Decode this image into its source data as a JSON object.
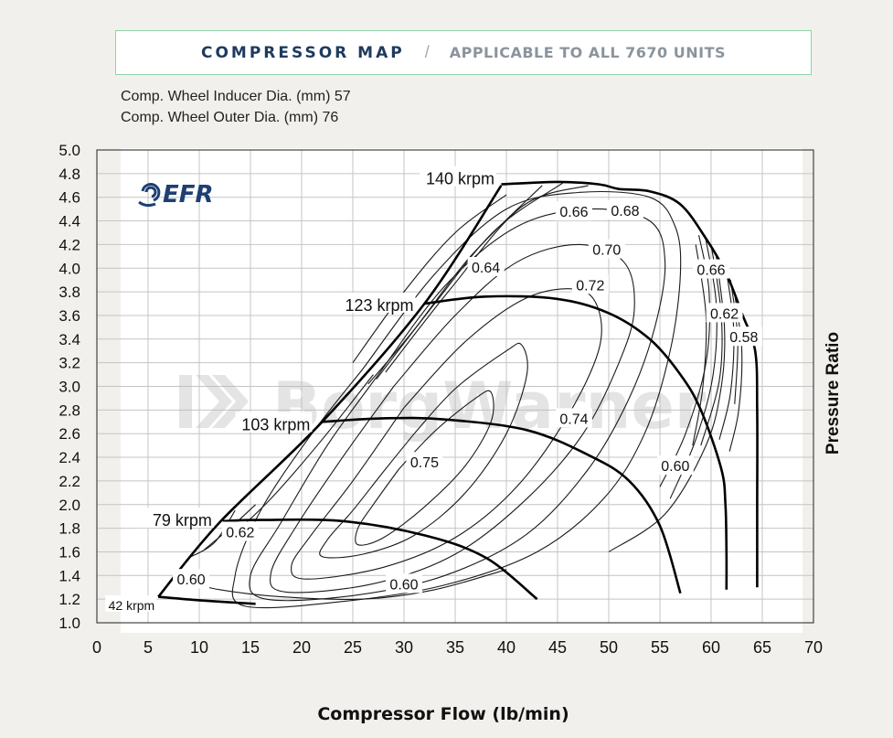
{
  "header": {
    "title": "COMPRESSOR MAP",
    "separator": "/",
    "subtitle": "APPLICABLE TO ALL 7670  UNITS"
  },
  "specs": {
    "inducer": "Comp. Wheel Inducer Dia. (mm) 57",
    "outer": "Comp. Wheel Outer Dia. (mm) 76"
  },
  "logo": {
    "text": "EFR",
    "color": "#1f3f73",
    "watermark": "BorgWarner"
  },
  "colors": {
    "accent": "#1e3a5f",
    "header_border": "#8fd4a8",
    "page_bg": "#f1f0ec"
  },
  "chart_data": {
    "type": "line",
    "xlabel": "Compressor Flow (lb/min)",
    "ylabel": "Pressure Ratio",
    "xlim": [
      0,
      70
    ],
    "ylim": [
      1.0,
      5.0
    ],
    "xticks": [
      0,
      5,
      10,
      15,
      20,
      25,
      30,
      35,
      40,
      45,
      50,
      55,
      60,
      65,
      70
    ],
    "yticks": [
      1.0,
      1.2,
      1.4,
      1.6,
      1.8,
      2.0,
      2.2,
      2.4,
      2.6,
      2.8,
      3.0,
      3.2,
      3.4,
      3.6,
      3.8,
      4.0,
      4.2,
      4.4,
      4.6,
      4.8,
      5.0
    ],
    "ytick_labels": [
      "1.0",
      "1.2",
      "1.4",
      "1.6",
      "1.8",
      "2.0",
      "2.2",
      "2.4",
      "2.6",
      "2.8",
      "3.0",
      "3.2",
      "3.4",
      "3.6",
      "3.8",
      "4.0",
      "4.2",
      "4.4",
      "4.6",
      "4.8",
      "5.0"
    ],
    "grid": true,
    "surge_line": [
      [
        6,
        1.22
      ],
      [
        12,
        1.85
      ],
      [
        22,
        2.7
      ],
      [
        32,
        3.7
      ],
      [
        39.5,
        4.7
      ]
    ],
    "speed_lines": [
      {
        "name": "42 krpm",
        "points": [
          [
            6,
            1.22
          ],
          [
            10,
            1.19
          ],
          [
            15.5,
            1.16
          ]
        ]
      },
      {
        "name": "79 krpm",
        "points": [
          [
            12.3,
            1.86
          ],
          [
            16,
            1.87
          ],
          [
            24,
            1.86
          ],
          [
            32,
            1.74
          ],
          [
            38,
            1.55
          ],
          [
            43,
            1.2
          ]
        ]
      },
      {
        "name": "103 krpm",
        "points": [
          [
            22,
            2.7
          ],
          [
            28,
            2.73
          ],
          [
            34,
            2.72
          ],
          [
            42,
            2.63
          ],
          [
            48,
            2.42
          ],
          [
            52,
            2.2
          ],
          [
            55,
            1.82
          ],
          [
            57,
            1.25
          ]
        ]
      },
      {
        "name": "123 krpm",
        "points": [
          [
            32,
            3.7
          ],
          [
            38,
            3.76
          ],
          [
            45,
            3.74
          ],
          [
            50,
            3.62
          ],
          [
            54,
            3.4
          ],
          [
            57,
            3.1
          ],
          [
            59,
            2.8
          ],
          [
            61,
            2.3
          ],
          [
            61.4,
            2.0
          ],
          [
            61.5,
            1.6
          ],
          [
            61.5,
            1.28
          ]
        ]
      },
      {
        "name": "140 krpm",
        "points": [
          [
            39.5,
            4.71
          ],
          [
            45,
            4.73
          ],
          [
            49,
            4.71
          ],
          [
            51,
            4.67
          ],
          [
            54,
            4.65
          ],
          [
            57,
            4.54
          ],
          [
            59.5,
            4.25
          ],
          [
            61.5,
            3.95
          ],
          [
            63,
            3.62
          ],
          [
            64.3,
            3.3
          ],
          [
            64.5,
            2.8
          ],
          [
            64.5,
            2.0
          ],
          [
            64.5,
            1.6
          ],
          [
            64.5,
            1.3
          ]
        ]
      }
    ],
    "efficiency_islands": [
      {
        "label": "0.75",
        "points": [
          [
            29.5,
            2.3
          ],
          [
            33,
            2.62
          ],
          [
            37,
            2.9
          ],
          [
            38.5,
            2.95
          ],
          [
            38.5,
            2.7
          ],
          [
            36,
            2.33
          ],
          [
            32,
            1.98
          ],
          [
            28,
            1.72
          ],
          [
            25.5,
            1.66
          ],
          [
            25.5,
            1.8
          ],
          [
            27,
            2.0
          ],
          [
            29.5,
            2.3
          ]
        ]
      },
      {
        "label": "0.74",
        "points": [
          [
            31,
            2.6
          ],
          [
            35,
            2.98
          ],
          [
            40,
            3.3
          ],
          [
            41.5,
            3.35
          ],
          [
            42,
            3.1
          ],
          [
            40,
            2.6
          ],
          [
            36,
            2.1
          ],
          [
            31,
            1.74
          ],
          [
            26,
            1.58
          ],
          [
            22,
            1.56
          ],
          [
            22.5,
            1.7
          ],
          [
            25,
            1.95
          ],
          [
            28,
            2.28
          ],
          [
            31,
            2.6
          ]
        ]
      },
      {
        "label": "0.72",
        "points": [
          [
            30,
            2.82
          ],
          [
            36,
            3.38
          ],
          [
            42,
            3.75
          ],
          [
            47,
            3.82
          ],
          [
            49,
            3.65
          ],
          [
            49,
            3.3
          ],
          [
            46,
            2.75
          ],
          [
            41,
            2.15
          ],
          [
            35,
            1.72
          ],
          [
            28,
            1.47
          ],
          [
            20.5,
            1.37
          ],
          [
            19,
            1.48
          ],
          [
            21,
            1.75
          ],
          [
            25,
            2.2
          ],
          [
            30,
            2.82
          ]
        ]
      },
      {
        "label": "0.70",
        "points": [
          [
            29,
            3.0
          ],
          [
            35,
            3.6
          ],
          [
            41,
            4.05
          ],
          [
            47,
            4.2
          ],
          [
            51.5,
            4.05
          ],
          [
            52.5,
            3.65
          ],
          [
            51,
            3.2
          ],
          [
            47.5,
            2.6
          ],
          [
            42,
            2.05
          ],
          [
            35,
            1.58
          ],
          [
            27,
            1.33
          ],
          [
            18.5,
            1.26
          ],
          [
            17,
            1.42
          ],
          [
            19.5,
            1.82
          ],
          [
            24,
            2.4
          ],
          [
            29,
            3.0
          ]
        ]
      },
      {
        "label": "0.68",
        "points": [
          [
            27.5,
            3.1
          ],
          [
            34,
            3.85
          ],
          [
            41,
            4.35
          ],
          [
            48,
            4.5
          ],
          [
            54,
            4.4
          ],
          [
            55.5,
            4.05
          ],
          [
            54.5,
            3.5
          ],
          [
            52,
            2.9
          ],
          [
            48,
            2.3
          ],
          [
            42,
            1.75
          ],
          [
            34,
            1.4
          ],
          [
            25,
            1.23
          ],
          [
            16.5,
            1.2
          ],
          [
            15,
            1.4
          ],
          [
            18,
            1.85
          ],
          [
            22.5,
            2.5
          ],
          [
            27.5,
            3.1
          ]
        ]
      },
      {
        "label": "0.66",
        "points": [
          [
            26,
            3.15
          ],
          [
            33,
            3.95
          ],
          [
            40,
            4.5
          ],
          [
            47,
            4.64
          ],
          [
            54,
            4.6
          ],
          [
            56.5,
            4.35
          ],
          [
            57,
            3.95
          ],
          [
            56,
            3.3
          ],
          [
            53.5,
            2.6
          ],
          [
            49.5,
            2.05
          ],
          [
            43,
            1.6
          ],
          [
            34,
            1.32
          ],
          [
            24,
            1.18
          ],
          [
            14.5,
            1.14
          ],
          [
            13.5,
            1.4
          ],
          [
            16,
            1.95
          ],
          [
            21,
            2.6
          ],
          [
            26,
            3.15
          ]
        ]
      },
      {
        "label": "0.64",
        "points": [
          [
            25,
            3.2
          ],
          [
            30,
            3.8
          ],
          [
            35,
            4.3
          ],
          [
            40,
            4.62
          ]
        ]
      },
      {
        "label": "0.62",
        "points": [
          [
            13,
            1.72
          ],
          [
            17,
            2.05
          ],
          [
            22,
            2.55
          ],
          [
            27,
            3.1
          ]
        ]
      },
      {
        "label": "0.62",
        "points": [
          [
            58.5,
            4.2
          ],
          [
            59.5,
            3.6
          ],
          [
            59.2,
            3.0
          ],
          [
            58.2,
            2.5
          ]
        ]
      },
      {
        "label": "0.60",
        "points": [
          [
            8.2,
            1.36
          ],
          [
            12,
            1.28
          ],
          [
            18,
            1.22
          ],
          [
            26,
            1.2
          ],
          [
            33,
            1.28
          ],
          [
            40,
            1.45
          ]
        ]
      },
      {
        "label": "0.60",
        "points": [
          [
            60.5,
            4.1
          ],
          [
            61.3,
            3.5
          ],
          [
            61,
            3.0
          ],
          [
            59.5,
            2.5
          ],
          [
            55.5,
            1.92
          ],
          [
            50,
            1.6
          ]
        ]
      },
      {
        "label": "0.58",
        "points": [
          [
            62.3,
            3.78
          ],
          [
            63,
            3.3
          ],
          [
            62.7,
            2.8
          ],
          [
            61.8,
            2.45
          ]
        ]
      }
    ],
    "surge_fans": [
      {
        "points": [
          [
            9,
            1.55
          ],
          [
            11.5,
            1.68
          ],
          [
            13.5,
            1.95
          ]
        ]
      },
      {
        "points": [
          [
            10.5,
            1.62
          ],
          [
            13,
            1.8
          ],
          [
            15.5,
            2.0
          ]
        ]
      },
      {
        "points": [
          [
            26.5,
            3.02
          ],
          [
            31,
            3.48
          ],
          [
            36.5,
            4.1
          ],
          [
            43.5,
            4.7
          ]
        ]
      },
      {
        "points": [
          [
            27.3,
            3.06
          ],
          [
            33,
            3.7
          ],
          [
            39,
            4.33
          ],
          [
            45.5,
            4.72
          ]
        ]
      },
      {
        "points": [
          [
            28.2,
            3.12
          ],
          [
            34.5,
            3.82
          ],
          [
            41.5,
            4.52
          ],
          [
            48,
            4.7
          ]
        ]
      }
    ],
    "choke_fans": [
      {
        "points": [
          [
            58.8,
            4.28
          ],
          [
            59.8,
            3.8
          ],
          [
            59.5,
            3.2
          ],
          [
            57.5,
            2.6
          ],
          [
            55,
            2.15
          ]
        ]
      },
      {
        "points": [
          [
            59.4,
            4.28
          ],
          [
            60.5,
            3.7
          ],
          [
            60.2,
            3.1
          ],
          [
            58.5,
            2.55
          ],
          [
            56,
            2.05
          ]
        ]
      },
      {
        "points": [
          [
            60,
            4.2
          ],
          [
            61,
            3.6
          ],
          [
            60.8,
            3.05
          ],
          [
            59,
            2.5
          ]
        ]
      },
      {
        "points": [
          [
            61.4,
            4.02
          ],
          [
            62.2,
            3.5
          ],
          [
            61.9,
            2.95
          ],
          [
            60.8,
            2.55
          ]
        ]
      },
      {
        "points": [
          [
            61.9,
            3.9
          ],
          [
            62.6,
            3.4
          ],
          [
            62.3,
            2.85
          ]
        ]
      }
    ],
    "speed_labels": [
      {
        "text": "140 krpm",
        "x": 39.2,
        "y": 4.74
      },
      {
        "text": "123 krpm",
        "x": 31.3,
        "y": 3.67
      },
      {
        "text": "103 krpm",
        "x": 21.2,
        "y": 2.66
      },
      {
        "text": "79 krpm",
        "x": 11.6,
        "y": 1.85
      },
      {
        "text": "42 krpm",
        "x": 6.0,
        "y": 1.14
      }
    ],
    "efficiency_labels": [
      {
        "text": "0.66",
        "x": 46.6,
        "y": 4.48
      },
      {
        "text": "0.68",
        "x": 51.6,
        "y": 4.49
      },
      {
        "text": "0.70",
        "x": 49.8,
        "y": 4.16
      },
      {
        "text": "0.64",
        "x": 38.0,
        "y": 4.01
      },
      {
        "text": "0.72",
        "x": 48.2,
        "y": 3.86
      },
      {
        "text": "0.66",
        "x": 60.0,
        "y": 3.99
      },
      {
        "text": "0.62",
        "x": 61.3,
        "y": 3.62
      },
      {
        "text": "0.58",
        "x": 63.2,
        "y": 3.42
      },
      {
        "text": "0.74",
        "x": 46.6,
        "y": 2.73
      },
      {
        "text": "0.75",
        "x": 32.0,
        "y": 2.36
      },
      {
        "text": "0.60",
        "x": 56.5,
        "y": 2.33
      },
      {
        "text": "0.62",
        "x": 14.0,
        "y": 1.77
      },
      {
        "text": "0.60",
        "x": 9.2,
        "y": 1.37
      },
      {
        "text": "0.60",
        "x": 30.0,
        "y": 1.33
      }
    ]
  }
}
